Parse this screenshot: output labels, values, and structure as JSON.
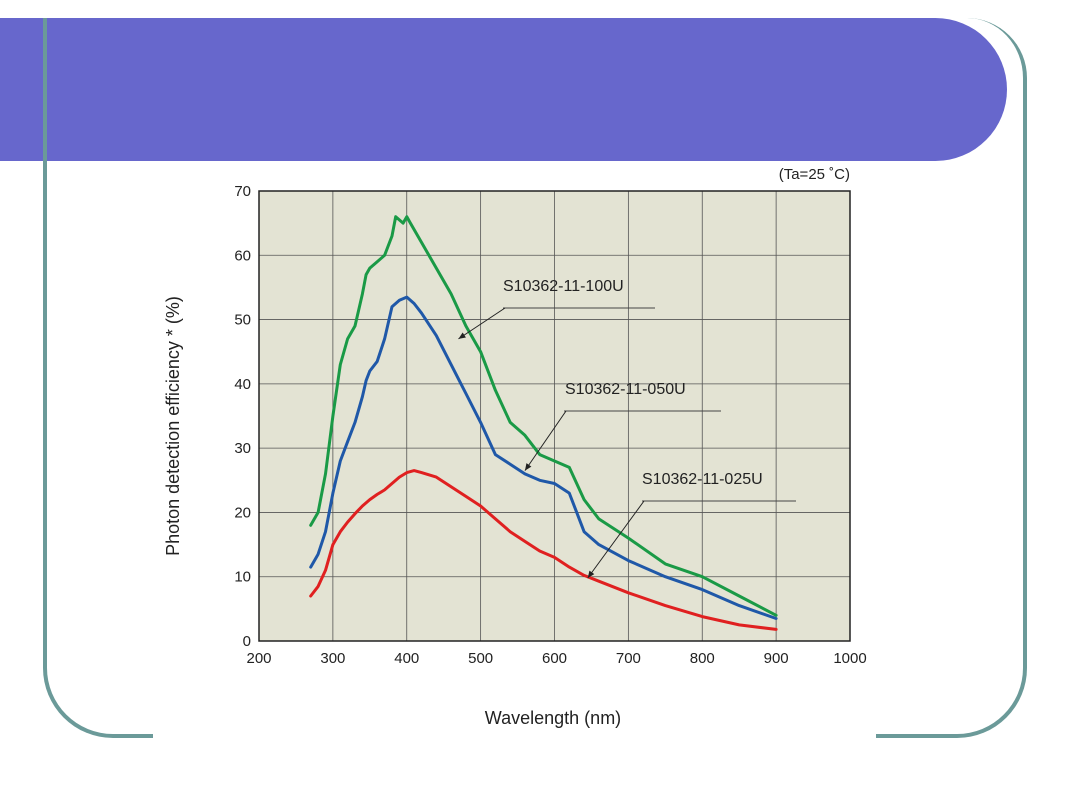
{
  "colors": {
    "title_band": "#6767cc",
    "frame": "#6b9a99",
    "plot_background": "#e3e3d3"
  },
  "chart_data": {
    "type": "line",
    "title": "",
    "condition": "(Ta=25 ˚C)",
    "xlabel": "Wavelength (nm)",
    "ylabel": "Photon detection efficiency * (%)",
    "xlim": [
      200,
      1000
    ],
    "ylim": [
      0,
      70
    ],
    "xticks": [
      200,
      300,
      400,
      500,
      600,
      700,
      800,
      900,
      1000
    ],
    "yticks": [
      0,
      10,
      20,
      30,
      40,
      50,
      60,
      70
    ],
    "grid": true,
    "series": [
      {
        "name": "S10362-11-100U",
        "color": "#1a9a46",
        "x": [
          270,
          280,
          290,
          300,
          310,
          320,
          330,
          340,
          345,
          350,
          360,
          370,
          380,
          385,
          395,
          400,
          405,
          420,
          440,
          460,
          480,
          500,
          520,
          540,
          560,
          580,
          600,
          620,
          640,
          660,
          700,
          750,
          800,
          850,
          900
        ],
        "y": [
          18,
          20,
          26,
          35,
          43,
          47,
          49,
          54,
          57,
          58,
          59,
          60,
          63,
          66,
          65,
          66,
          65,
          62,
          58,
          54,
          49,
          45,
          39,
          34,
          32,
          29,
          28,
          27,
          22,
          19,
          16,
          12,
          10,
          7,
          4
        ]
      },
      {
        "name": "S10362-11-050U",
        "color": "#1f58a8",
        "x": [
          270,
          280,
          290,
          300,
          310,
          320,
          330,
          340,
          345,
          350,
          360,
          370,
          380,
          390,
          400,
          410,
          420,
          440,
          460,
          480,
          500,
          520,
          540,
          560,
          580,
          600,
          620,
          640,
          660,
          700,
          750,
          800,
          850,
          900
        ],
        "y": [
          11.5,
          13.5,
          17,
          23,
          28,
          31,
          34,
          38,
          40.5,
          42,
          43.5,
          47,
          52,
          53,
          53.5,
          52.5,
          51,
          47.5,
          43,
          38.5,
          34,
          29,
          27.5,
          26,
          25,
          24.5,
          23,
          17,
          15,
          12.5,
          10,
          8,
          5.5,
          3.5
        ]
      },
      {
        "name": "S10362-11-025U",
        "color": "#e02020",
        "x": [
          270,
          280,
          290,
          300,
          310,
          320,
          330,
          340,
          350,
          360,
          370,
          380,
          390,
          400,
          410,
          420,
          440,
          460,
          480,
          500,
          520,
          540,
          560,
          580,
          600,
          620,
          640,
          660,
          700,
          750,
          800,
          850,
          900
        ],
        "y": [
          7,
          8.5,
          11,
          15,
          17,
          18.5,
          19.8,
          21,
          22,
          22.8,
          23.5,
          24.5,
          25.5,
          26.2,
          26.5,
          26.2,
          25.5,
          24,
          22.5,
          21,
          19,
          17,
          15.5,
          14,
          13,
          11.5,
          10.2,
          9.3,
          7.5,
          5.5,
          3.8,
          2.5,
          1.8
        ]
      }
    ]
  }
}
